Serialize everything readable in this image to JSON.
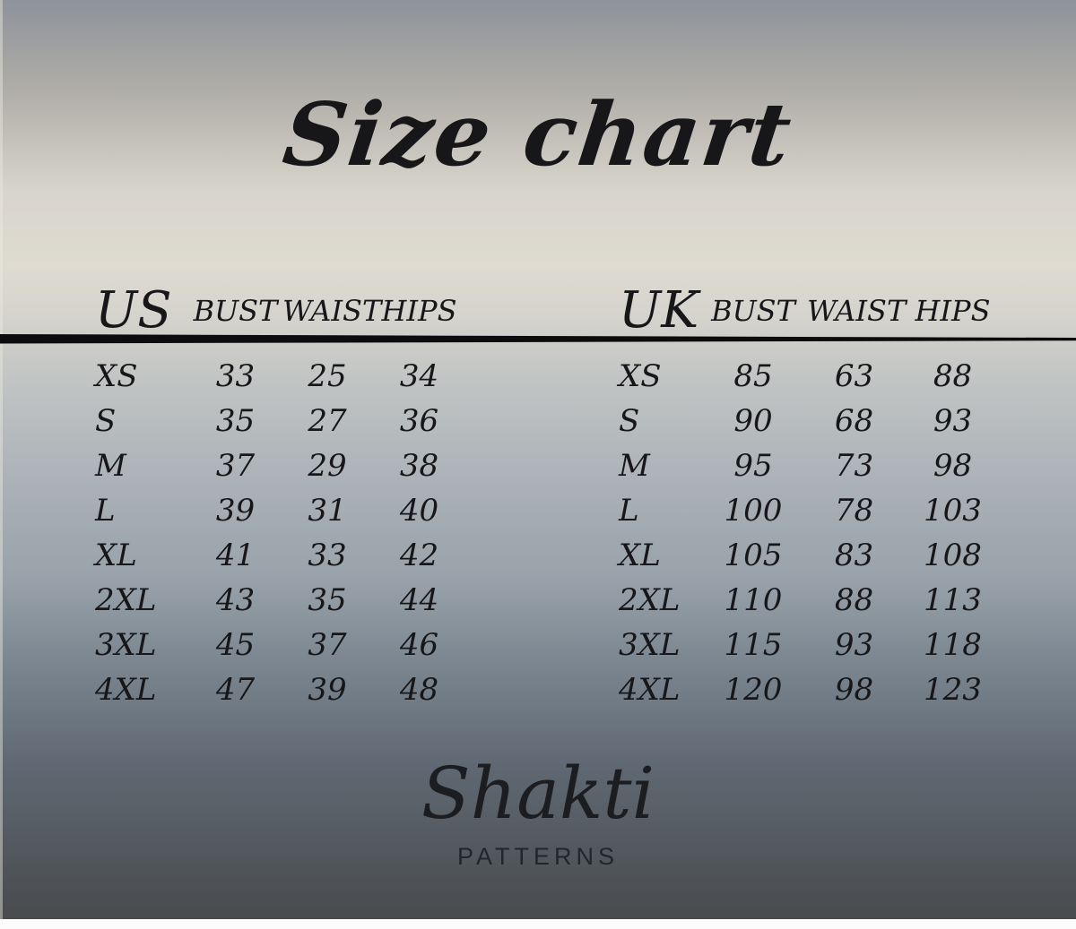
{
  "title": "Size chart",
  "brand": {
    "name": "Shakti",
    "tagline": "PATTERNS"
  },
  "chart_data": [
    {
      "type": "table",
      "region": "US",
      "headers": [
        "BUST",
        "WAIST",
        "HIPS"
      ],
      "rows": [
        {
          "size": "XS",
          "bust": "33",
          "waist": "25",
          "hips": "34"
        },
        {
          "size": "S",
          "bust": "35",
          "waist": "27",
          "hips": "36"
        },
        {
          "size": "M",
          "bust": "37",
          "waist": "29",
          "hips": "38"
        },
        {
          "size": "L",
          "bust": "39",
          "waist": "31",
          "hips": "40"
        },
        {
          "size": "XL",
          "bust": "41",
          "waist": "33",
          "hips": "42"
        },
        {
          "size": "2XL",
          "bust": "43",
          "waist": "35",
          "hips": "44"
        },
        {
          "size": "3XL",
          "bust": "45",
          "waist": "37",
          "hips": "46"
        },
        {
          "size": "4XL",
          "bust": "47",
          "waist": "39",
          "hips": "48"
        }
      ]
    },
    {
      "type": "table",
      "region": "UK",
      "headers": [
        "BUST",
        "WAIST",
        "HIPS"
      ],
      "rows": [
        {
          "size": "XS",
          "bust": "85",
          "waist": "63",
          "hips": "88"
        },
        {
          "size": "S",
          "bust": "90",
          "waist": "68",
          "hips": "93"
        },
        {
          "size": "M",
          "bust": "95",
          "waist": "73",
          "hips": "98"
        },
        {
          "size": "L",
          "bust": "100",
          "waist": "78",
          "hips": "103"
        },
        {
          "size": "XL",
          "bust": "105",
          "waist": "83",
          "hips": "108"
        },
        {
          "size": "2XL",
          "bust": "110",
          "waist": "88",
          "hips": "113"
        },
        {
          "size": "3XL",
          "bust": "115",
          "waist": "93",
          "hips": "118"
        },
        {
          "size": "4XL",
          "bust": "120",
          "waist": "98",
          "hips": "123"
        }
      ]
    }
  ],
  "colors": {
    "ink": "#17171a",
    "background_top": "#8e929a",
    "background_cream": "#dedbd0",
    "background_mid": "#a8afb5",
    "background_bottom": "#494b4d",
    "bottom_strip": "#fcfcfc"
  }
}
